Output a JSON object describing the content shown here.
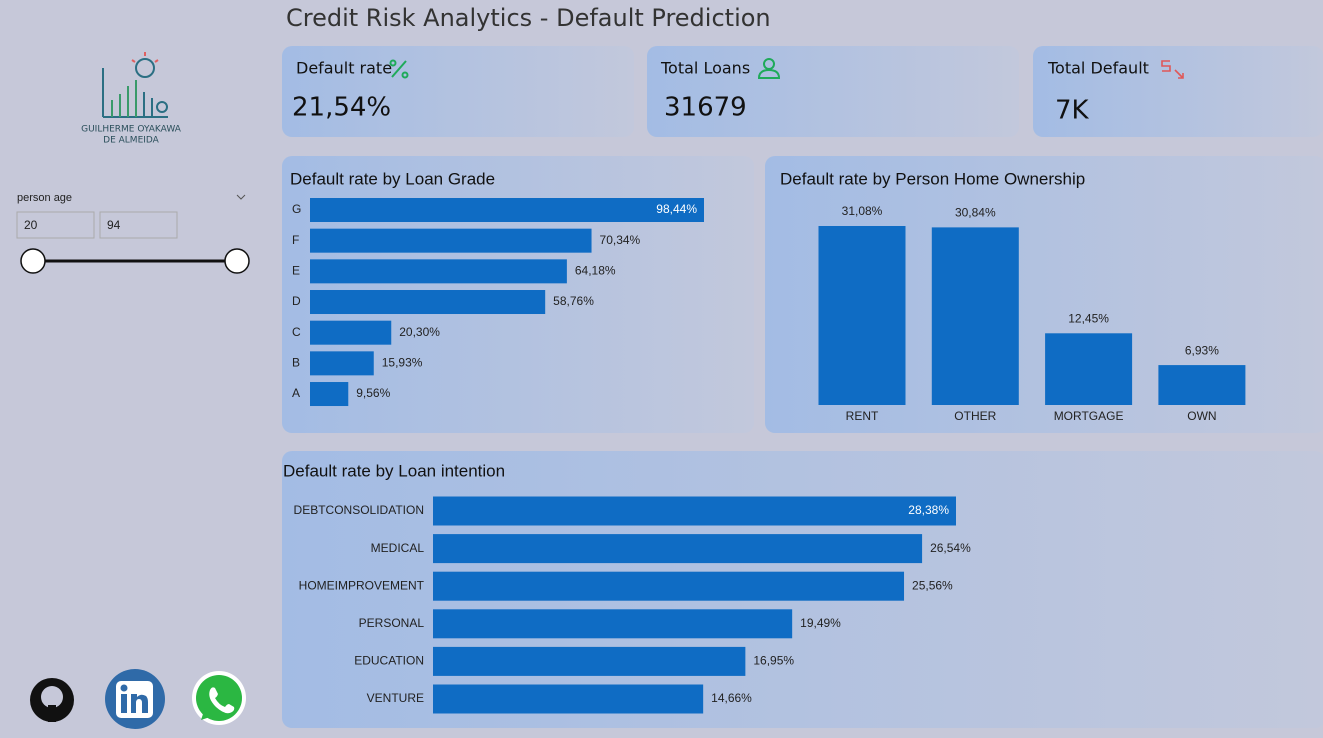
{
  "header": {
    "title": "Credit Risk Analytics - Default Prediction"
  },
  "logo": {
    "lines": [
      "GUILHERME OYAKAWA",
      "DE ALMEIDA"
    ]
  },
  "slicer": {
    "label": "person age",
    "min": "20",
    "max": "94"
  },
  "kpis": [
    {
      "label": "Default rate",
      "value": "21,54%"
    },
    {
      "label": "Total Loans",
      "value": "31679"
    },
    {
      "label": "Total Default",
      "value": "7K"
    }
  ],
  "chart_data": [
    {
      "type": "bar",
      "orientation": "horizontal",
      "title": "Default rate by Loan Grade",
      "color": "#0f6cc4",
      "categories": [
        "G",
        "F",
        "E",
        "D",
        "C",
        "B",
        "A"
      ],
      "values": [
        98.44,
        70.34,
        64.18,
        58.76,
        20.3,
        15.93,
        9.56
      ],
      "value_labels": [
        "98,44%",
        "70,34%",
        "64,18%",
        "58,76%",
        "20,30%",
        "15,93%",
        "9,56%"
      ]
    },
    {
      "type": "bar",
      "orientation": "vertical",
      "title": "Default rate by Person Home Ownership",
      "color": "#0f6cc4",
      "categories": [
        "RENT",
        "OTHER",
        "MORTGAGE",
        "OWN"
      ],
      "values": [
        31.08,
        30.84,
        12.45,
        6.93
      ],
      "value_labels": [
        "31,08%",
        "30,84%",
        "12,45%",
        "6,93%"
      ]
    },
    {
      "type": "bar",
      "orientation": "horizontal",
      "title": "Default rate by Loan intention",
      "color": "#0f6cc4",
      "categories": [
        "DEBTCONSOLIDATION",
        "MEDICAL",
        "HOMEIMPROVEMENT",
        "PERSONAL",
        "EDUCATION",
        "VENTURE"
      ],
      "values": [
        28.38,
        26.54,
        25.56,
        19.49,
        16.95,
        14.66
      ],
      "value_labels": [
        "28,38%",
        "26,54%",
        "25,56%",
        "19,49%",
        "16,95%",
        "14,66%"
      ]
    }
  ]
}
